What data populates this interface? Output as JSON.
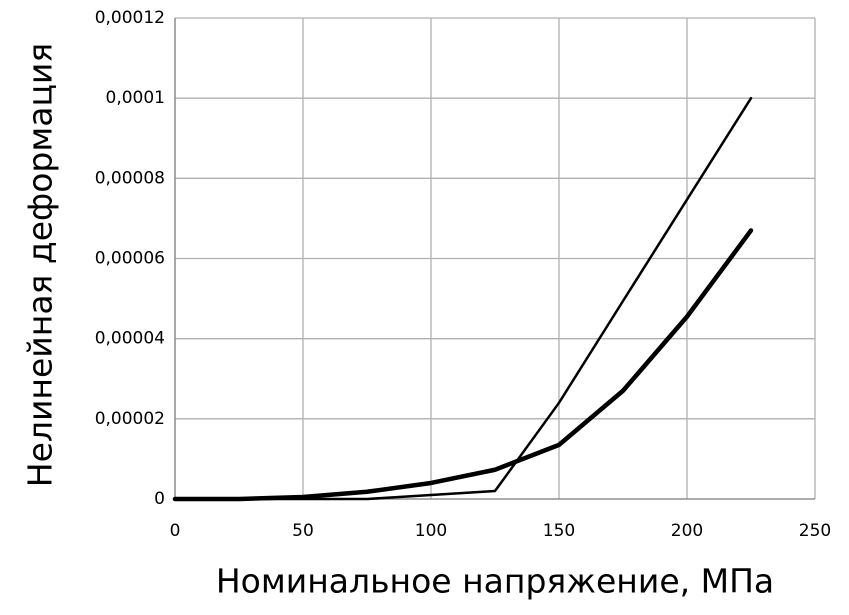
{
  "chart_data": {
    "type": "line",
    "x_label": "Номинальное напряжение, МПа",
    "y_label": "Нелинейная деформация",
    "x": [
      0,
      25,
      50,
      75,
      100,
      125,
      150,
      175,
      200,
      225
    ],
    "series": [
      {
        "color": "#000000",
        "values": [
          0,
          0,
          0,
          0,
          1e-06,
          2e-06,
          2.4e-05,
          4.94e-05,
          7.47e-05,
          0.0001
        ]
      },
      {
        "color": "#000000",
        "values": [
          0,
          0,
          5e-07,
          1.8e-06,
          4e-06,
          7.3e-06,
          1.35e-05,
          2.7e-05,
          4.55e-05,
          6.7e-05
        ]
      }
    ],
    "xlim": [
      0,
      250
    ],
    "xticks": [
      0,
      50,
      100,
      150,
      200,
      250
    ],
    "ylim": [
      0,
      0.00012
    ],
    "yticks": [
      0,
      {
        "value": 2e-05,
        "label": "0,00002"
      },
      {
        "value": 4e-05,
        "label": "0,00004"
      },
      {
        "value": 6e-05,
        "label": "0,00006"
      },
      {
        "value": 8e-05,
        "label": "0,00008"
      },
      {
        "value": 0.0001,
        "label": "0,0001"
      },
      {
        "value": 0.00012,
        "label": "0,00012"
      }
    ],
    "grid": true
  }
}
